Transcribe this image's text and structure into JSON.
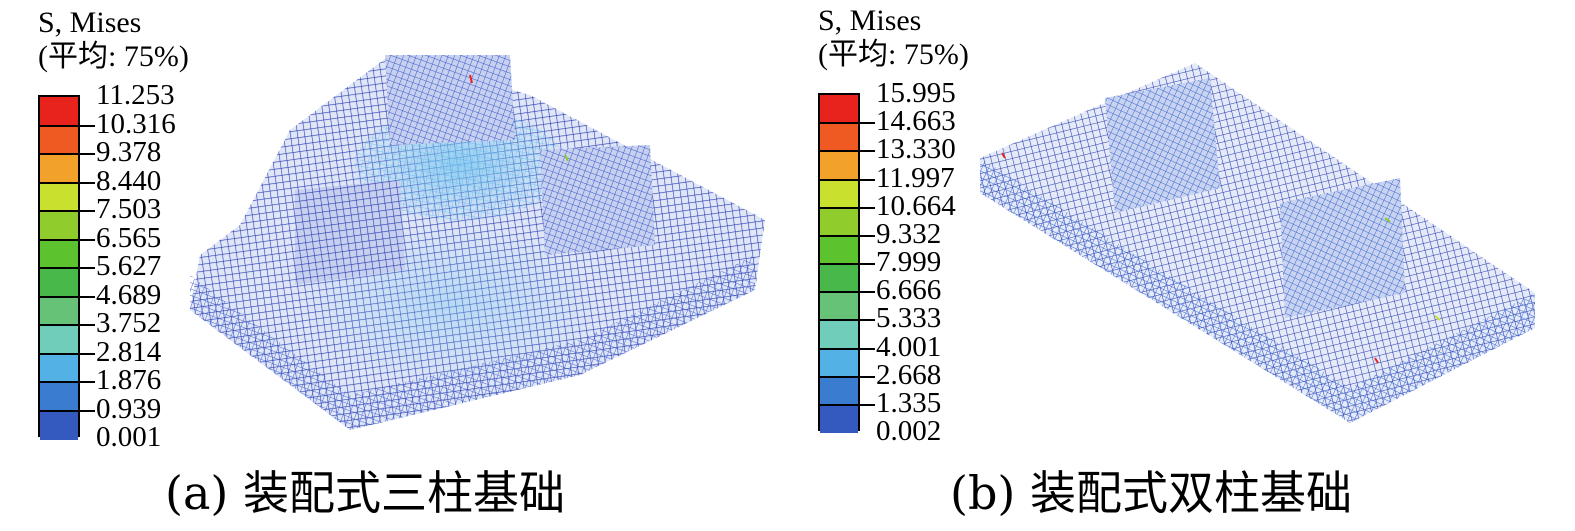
{
  "panels": [
    {
      "id": "a",
      "legend": {
        "title_line1": "S, Mises",
        "title_line2": "(平均: 75%)",
        "values": [
          "11.253",
          "10.316",
          "9.378",
          "8.440",
          "7.503",
          "6.565",
          "5.627",
          "4.689",
          "3.752",
          "2.814",
          "1.876",
          "0.939",
          "0.001"
        ],
        "colors": [
          "#e8231e",
          "#ee5a22",
          "#f2a12a",
          "#c9e02e",
          "#8fcc2c",
          "#5cc22e",
          "#49b84a",
          "#66c277",
          "#6fcdb9",
          "#53b1e6",
          "#3a7cd0",
          "#3459bf",
          "#2f46b4"
        ]
      },
      "caption": "(a) 装配式三柱基础"
    },
    {
      "id": "b",
      "legend": {
        "title_line1": "S, Mises",
        "title_line2": "(平均: 75%)",
        "values": [
          "15.995",
          "14.663",
          "13.330",
          "11.997",
          "10.664",
          "9.332",
          "7.999",
          "6.666",
          "5.333",
          "4.001",
          "2.668",
          "1.335",
          "0.002"
        ],
        "colors": [
          "#e8231e",
          "#ee5a22",
          "#f2a12a",
          "#c9e02e",
          "#8fcc2c",
          "#5cc22e",
          "#49b84a",
          "#66c277",
          "#6fcdb9",
          "#53b1e6",
          "#3a7cd0",
          "#3459bf",
          "#2f46b4"
        ]
      },
      "caption": "(b) 装配式双柱基础"
    }
  ]
}
